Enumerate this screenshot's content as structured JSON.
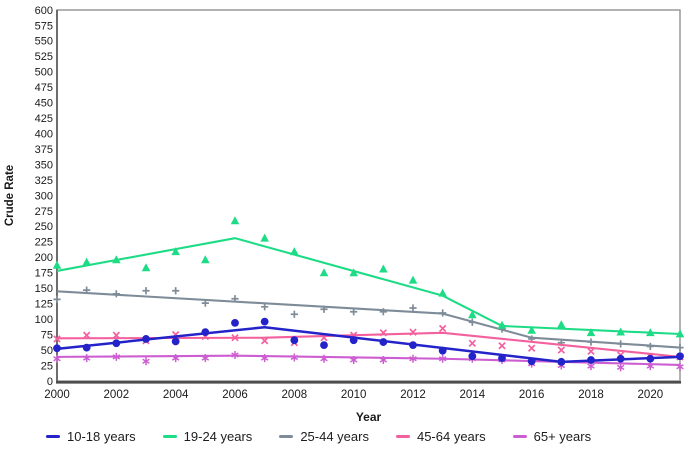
{
  "figure": {
    "title": "",
    "y_axis_title": "Crude Rate",
    "x_axis_title": "Year"
  },
  "chart_data": {
    "type": "line",
    "title": "",
    "xlabel": "Year",
    "ylabel": "Crude Rate",
    "x": [
      2000,
      2001,
      2002,
      2003,
      2004,
      2005,
      2006,
      2007,
      2008,
      2009,
      2010,
      2011,
      2012,
      2013,
      2014,
      2015,
      2016,
      2017,
      2018,
      2019,
      2020,
      2021
    ],
    "x_tick_labels": [
      "2000",
      "2002",
      "2004",
      "2006",
      "2008",
      "2010",
      "2012",
      "2014",
      "2016",
      "2018",
      "2020"
    ],
    "ylim": [
      0,
      600
    ],
    "y_tick_step": 25,
    "grid": false,
    "legend_position": "bottom",
    "axis_colors": {
      "box_border": "#999999",
      "bottom_axis": "#4d4d4d",
      "left_axis": "#3a3a3a",
      "tick_text": "#1a1a1a"
    },
    "series": [
      {
        "name": "10-18 years",
        "color": "#2323c9",
        "marker": "circle",
        "scatter": [
          53,
          54,
          61,
          68,
          64,
          79,
          94,
          96,
          66,
          58,
          66,
          63,
          58,
          49,
          40,
          37,
          32,
          31,
          34,
          36,
          36,
          40
        ],
        "trend_line": [
          [
            2000,
            52
          ],
          [
            2007,
            87
          ],
          [
            2017,
            31
          ],
          [
            2021,
            39
          ]
        ]
      },
      {
        "name": "19-24 years",
        "color": "#1edc86",
        "marker": "triangle",
        "scatter": [
          187,
          192,
          196,
          183,
          209,
          196,
          259,
          231,
          209,
          175,
          175,
          181,
          163,
          142,
          107,
          90,
          82,
          91,
          78,
          79,
          78,
          76
        ],
        "trend_line": [
          [
            2000,
            178
          ],
          [
            2006,
            231
          ],
          [
            2013,
            138
          ],
          [
            2015,
            89
          ],
          [
            2021,
            76
          ]
        ]
      },
      {
        "name": "25-44 years",
        "color": "#7e8c99",
        "marker": "plus",
        "scatter": [
          132,
          147,
          141,
          146,
          146,
          126,
          133,
          120,
          108,
          116,
          112,
          112,
          118,
          110,
          95,
          84,
          68,
          62,
          63,
          60,
          56,
          54
        ],
        "trend_line": [
          [
            2000,
            145
          ],
          [
            2013,
            109
          ],
          [
            2016,
            70
          ],
          [
            2021,
            54
          ]
        ]
      },
      {
        "name": "45-64 years",
        "color": "#f4609e",
        "marker": "x",
        "scatter": [
          68,
          74,
          74,
          65,
          75,
          72,
          70,
          65,
          62,
          70,
          74,
          78,
          79,
          85,
          61,
          57,
          53,
          50,
          48,
          42,
          40,
          39
        ],
        "trend_line": [
          [
            2000,
            69
          ],
          [
            2007,
            70
          ],
          [
            2013,
            78
          ],
          [
            2021,
            39
          ]
        ]
      },
      {
        "name": "65+ years",
        "color": "#cd5ed2",
        "marker": "asterisk",
        "scatter": [
          36,
          37,
          39,
          32,
          37,
          37,
          42,
          37,
          38,
          36,
          34,
          34,
          36,
          36,
          36,
          34,
          28,
          25,
          24,
          22,
          24,
          23
        ],
        "trend_line": [
          [
            2000,
            39
          ],
          [
            2006,
            41
          ],
          [
            2013,
            36
          ],
          [
            2021,
            26
          ]
        ]
      }
    ]
  }
}
